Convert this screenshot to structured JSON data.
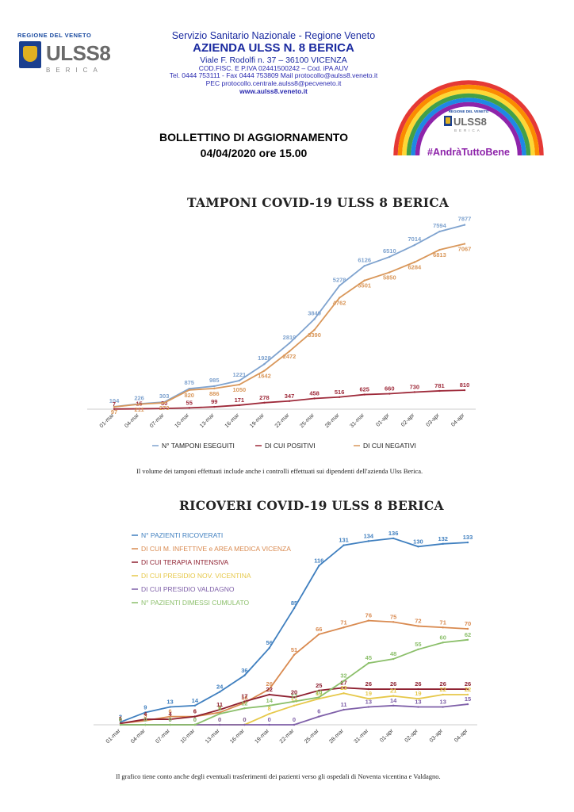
{
  "logo": {
    "region": "REGIONE DEL VENETO",
    "name": "ULSS8",
    "sub": "BERICA"
  },
  "header": {
    "line1": "Servizio Sanitario Nazionale - Regione Veneto",
    "line2": "AZIENDA ULSS N. 8 BERICA",
    "line3": "Viale F. Rodolfi n. 37 – 36100 VICENZA",
    "line4": "COD.FISC. E P.IVA 02441500242 – Cod. iPA AUV",
    "line5": "Tel.  0444 753111 - Fax  0444 753809 Mail  protocollo@aulss8.veneto.it",
    "line6": "PEC protocollo.centrale.aulss8@pecveneto.it",
    "line7": "www.aulss8.veneto.it"
  },
  "badge": {
    "region": "REGIONE DEL VENETO",
    "name": "ULSS8",
    "sub": "BERICA",
    "hashtag": "#AndràTuttoBene",
    "colors": [
      "#e53935",
      "#fb8c00",
      "#fdd835",
      "#43a047",
      "#1e88e5",
      "#8e24aa"
    ]
  },
  "bulletin": {
    "title": "BOLLETTINO DI AGGIORNAMENTO",
    "date": "04/04/2020 ore 15.00"
  },
  "chart_data": [
    {
      "type": "line",
      "title": "TAMPONI COVID-19 ULSS 8 BERICA",
      "x_ticks": [
        "01-mar",
        "04-mar",
        "07-mar",
        "10-mar",
        "13-mar",
        "16-mar",
        "19-mar",
        "22-mar",
        "25-mar",
        "28-mar",
        "31-mar",
        "01-apr",
        "02-apr",
        "03-apr",
        "04-apr"
      ],
      "legend_position": "bottom",
      "grid": false,
      "note": "Il volume dei tamponi effettuati include anche i controlli effettuati sui dipendenti dell'azienda Ulss Berica.",
      "series": [
        {
          "name": "N° TAMPONI ESEGUITI",
          "color": "#7fa3cf",
          "values": [
            104,
            226,
            303,
            875,
            985,
            1221,
            1928,
            2819,
            3849,
            5278,
            6126,
            6510,
            7014,
            7594,
            7877
          ]
        },
        {
          "name": "DI CUI POSITIVI",
          "color": "#9e2a3a",
          "values": [
            7,
            15,
            30,
            55,
            99,
            171,
            278,
            347,
            458,
            516,
            625,
            660,
            730,
            781,
            810
          ]
        },
        {
          "name": "DI CUI NEGATIVI",
          "color": "#d9975a",
          "values": [
            97,
            211,
            273,
            820,
            886,
            1050,
            1642,
            2472,
            3390,
            4762,
            5501,
            5850,
            6284,
            6813,
            7067
          ]
        }
      ]
    },
    {
      "type": "line",
      "title": "RICOVERI COVID-19 ULSS 8 BERICA",
      "x_ticks": [
        "01-mar",
        "04-mar",
        "07-mar",
        "10-mar",
        "13-mar",
        "16-mar",
        "19-mar",
        "22-mar",
        "25-mar",
        "28-mar",
        "31-mar",
        "01-apr",
        "02-apr",
        "03-apr",
        "04-apr"
      ],
      "legend_position": "top-left",
      "grid": false,
      "note": "Il grafico tiene conto anche degli eventuali trasferimenti dei pazienti verso gli ospedali di Noventa vicentina e Valdagno.",
      "series": [
        {
          "name": "N° PAZIENTI RICOVERATI",
          "color": "#3f7fbf",
          "values": [
            2,
            9,
            13,
            14,
            24,
            36,
            56,
            85,
            116,
            131,
            134,
            136,
            130,
            132,
            133
          ]
        },
        {
          "name": "DI CUI M. INFETTIVE e AREA MEDICA VICENZA",
          "color": "#d98a50",
          "values": [
            1,
            3,
            6,
            6,
            9,
            16,
            26,
            51,
            66,
            71,
            76,
            75,
            72,
            71,
            70
          ]
        },
        {
          "name": "DI CUI TERAPIA INTENSIVA",
          "color": "#8e2030",
          "values": [
            1,
            4,
            4,
            6,
            11,
            17,
            22,
            20,
            25,
            27,
            26,
            26,
            26,
            26,
            26
          ]
        },
        {
          "name": "DI CUI PRESIDIO NOV. VICENTINA",
          "color": "#e6c84a",
          "values": [
            0,
            0,
            0,
            0,
            0,
            0,
            8,
            14,
            19,
            23,
            19,
            21,
            19,
            22,
            22
          ]
        },
        {
          "name": "DI CUI PRESIDIO VALDAGNO",
          "color": "#7e5fa8",
          "values": [
            0,
            0,
            0,
            0,
            0,
            0,
            0,
            0,
            6,
            11,
            13,
            14,
            13,
            13,
            15
          ]
        },
        {
          "name": "N° PAZIENTI DIMESSI CUMULATO",
          "color": "#8bbf6a",
          "values": [
            0,
            0,
            0,
            0,
            8,
            12,
            14,
            17,
            20,
            32,
            45,
            48,
            55,
            60,
            62
          ]
        }
      ]
    }
  ]
}
